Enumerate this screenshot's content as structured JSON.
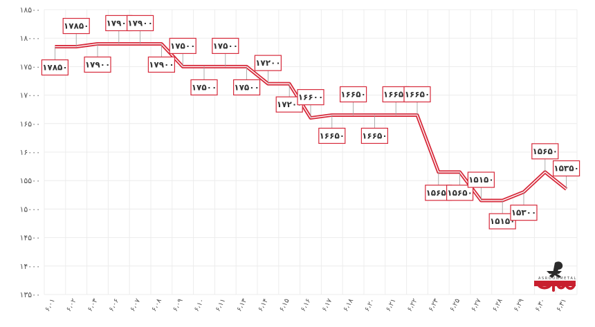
{
  "chart_data": {
    "type": "line",
    "x": [
      "۶،۰۱",
      "۶،۰۲",
      "۶،۰۳",
      "۶،۰۶",
      "۶،۰۷",
      "۶،۰۸",
      "۶،۰۹",
      "۶،۱۰",
      "۶،۱۱",
      "۶،۱۳",
      "۶،۱۴",
      "۶،۱۵",
      "۶،۱۶",
      "۶،۱۷",
      "۶،۱۸",
      "۶،۲۰",
      "۶،۲۱",
      "۶،۲۲",
      "۶،۲۳",
      "۶،۲۵",
      "۶،۲۷",
      "۶،۲۸",
      "۶،۲۹",
      "۶،۳۰",
      "۶،۳۱"
    ],
    "values": [
      17850,
      17850,
      17900,
      17900,
      17900,
      17900,
      17500,
      17500,
      17500,
      17500,
      17200,
      17200,
      16600,
      16650,
      16650,
      16650,
      16650,
      16650,
      15650,
      15650,
      15150,
      15150,
      15300,
      15650,
      15350
    ],
    "y_ticks": [
      13500,
      14000,
      14500,
      15000,
      15500,
      16000,
      16500,
      17000,
      17500,
      18000,
      18500
    ],
    "y_tick_labels": [
      "۱۳۵۰۰",
      "۱۴۰۰۰",
      "۱۴۵۰۰",
      "۱۵۰۰۰",
      "۱۵۵۰۰",
      "۱۶۰۰۰",
      "۱۶۵۰۰",
      "۱۷۰۰۰",
      "۱۷۵۰۰",
      "۱۸۰۰۰",
      "۱۸۵۰۰"
    ],
    "ylim": [
      13500,
      18500
    ],
    "grid": true,
    "line_color": "#d6293a",
    "label_border_color": "#d6293a",
    "data_labels": [
      {
        "i": 0,
        "text": "۱۷۸۵۰",
        "pos": "below"
      },
      {
        "i": 1,
        "text": "۱۷۸۵۰",
        "pos": "above"
      },
      {
        "i": 2,
        "text": "۱۷۹۰۰",
        "pos": "below"
      },
      {
        "i": 3,
        "text": "۱۷۹۰۰",
        "pos": "above"
      },
      {
        "i": 4,
        "text": "۱۷۹۰۰",
        "pos": "above"
      },
      {
        "i": 5,
        "text": "۱۷۹۰۰",
        "pos": "below"
      },
      {
        "i": 6,
        "text": "۱۷۵۰۰",
        "pos": "above"
      },
      {
        "i": 7,
        "text": "۱۷۵۰۰",
        "pos": "below"
      },
      {
        "i": 8,
        "text": "۱۷۵۰۰",
        "pos": "above"
      },
      {
        "i": 9,
        "text": "۱۷۵۰۰",
        "pos": "below"
      },
      {
        "i": 10,
        "text": "۱۷۲۰۰",
        "pos": "above"
      },
      {
        "i": 11,
        "text": "۱۷۲۰۰",
        "pos": "below"
      },
      {
        "i": 12,
        "text": "۱۶۶۰۰",
        "pos": "above"
      },
      {
        "i": 13,
        "text": "۱۶۶۵۰",
        "pos": "below"
      },
      {
        "i": 14,
        "text": "۱۶۶۵۰",
        "pos": "above"
      },
      {
        "i": 15,
        "text": "۱۶۶۵۰",
        "pos": "below"
      },
      {
        "i": 16,
        "text": "۱۶۶۵۰",
        "pos": "above"
      },
      {
        "i": 17,
        "text": "۱۶۶۵۰",
        "pos": "above"
      },
      {
        "i": 18,
        "text": "۱۵۶۵۰",
        "pos": "below"
      },
      {
        "i": 19,
        "text": "۱۵۶۵۰",
        "pos": "below"
      },
      {
        "i": 20,
        "text": "۱۵۱۵۰",
        "pos": "above"
      },
      {
        "i": 21,
        "text": "۱۵۱۵۰",
        "pos": "below"
      },
      {
        "i": 22,
        "text": "۱۵۳۰۰",
        "pos": "below"
      },
      {
        "i": 23,
        "text": "۱۵۶۵۰",
        "pos": "above"
      },
      {
        "i": 24,
        "text": "۱۵۳۵۰",
        "pos": "above"
      }
    ]
  },
  "watermark": {
    "brand_text": "آسرون",
    "brand_subtext": "ASROON METAL",
    "color": "#c8202f"
  }
}
